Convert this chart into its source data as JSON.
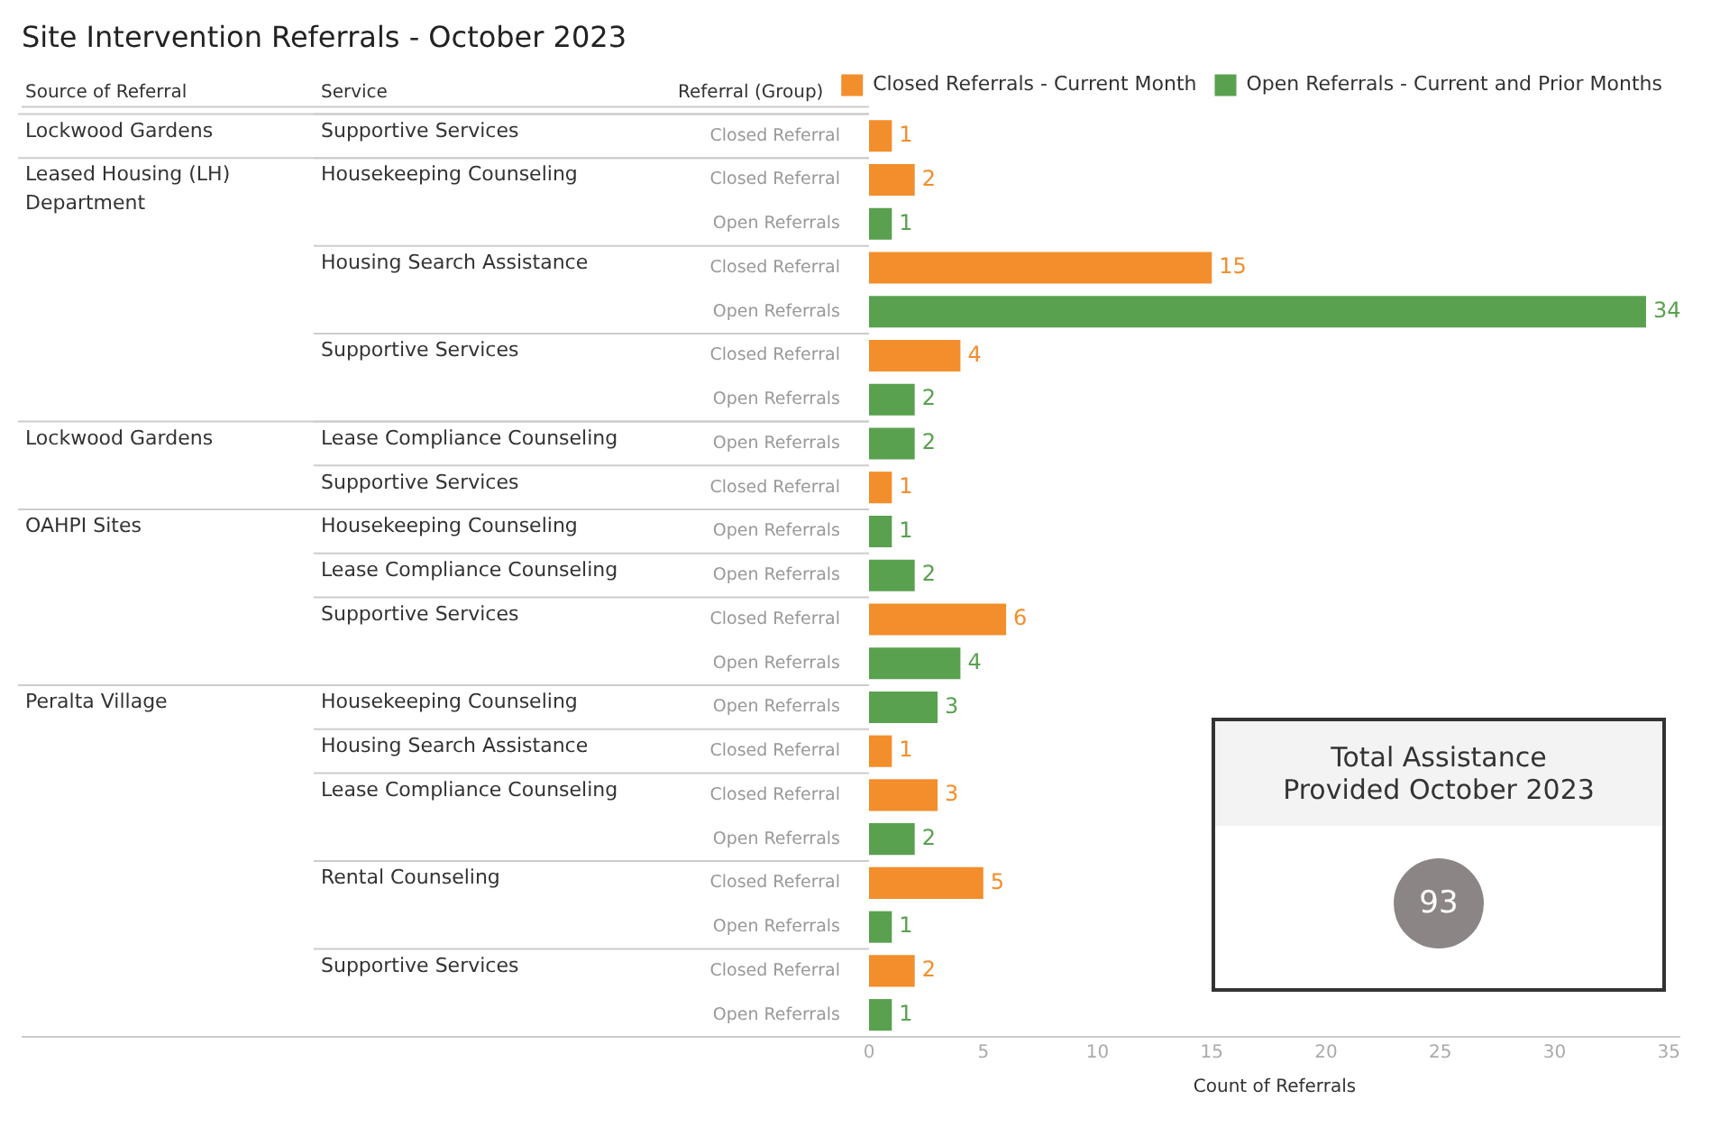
{
  "chart_data": [
    {
      "type": "bar",
      "orientation": "horizontal",
      "title": "Site Intervention Referrals - October 2023",
      "xlabel": "Count of Referrals",
      "annotations": [
        "Source of Referral",
        "Service",
        "Referral (Group)",
        "Lockwood Gardens",
        "Leased Housing (LH) Department",
        "Lockwood Gardens",
        "OAHPI Sites",
        "Peralta Village",
        "Supportive Services",
        "Housekeeping Counseling",
        "Housing Search Assistance",
        "Supportive Services",
        "Lease Compliance Counseling",
        "Supportive Services",
        "Housekeeping Counseling",
        "Lease Compliance Counseling",
        "Supportive Services",
        "Housekeeping Counseling",
        "Housing Search Assistance",
        "Lease Compliance Counseling",
        "Rental Counseling",
        "Supportive Services"
      ],
      "categories": [
        "Closed Referral",
        "Closed Referral",
        "Open Referrals",
        "Closed Referral",
        "Open Referrals",
        "Closed Referral",
        "Open Referrals",
        "Open Referrals",
        "Closed Referral",
        "Open Referrals",
        "Open Referrals",
        "Closed Referral",
        "Open Referrals",
        "Open Referrals",
        "Closed Referral",
        "Closed Referral",
        "Open Referrals",
        "Closed Referral",
        "Open Referrals",
        "Closed Referral",
        "Open Referrals"
      ],
      "series": [
        {
          "name": "Closed Referrals - Current Month",
          "color": "#f28e2b",
          "values": [
            1,
            2,
            null,
            15,
            null,
            4,
            null,
            null,
            1,
            null,
            null,
            6,
            null,
            null,
            1,
            3,
            null,
            5,
            null,
            2,
            null
          ]
        },
        {
          "name": "Open Referrals - Current and Prior Months",
          "color": "#59a14f",
          "values": [
            null,
            null,
            1,
            null,
            34,
            null,
            2,
            2,
            null,
            1,
            2,
            null,
            4,
            3,
            null,
            null,
            2,
            null,
            1,
            null,
            1
          ]
        }
      ],
      "xlim": [
        0,
        35.5
      ],
      "xticks": [
        0,
        5,
        10,
        15,
        20,
        25,
        30,
        35
      ],
      "grid": false,
      "legend": "top right",
      "data_labels": true
    },
    {
      "type": "other",
      "title": "Total Assistance Provided October 2023",
      "annotations": [
        "93"
      ]
    }
  ]
}
